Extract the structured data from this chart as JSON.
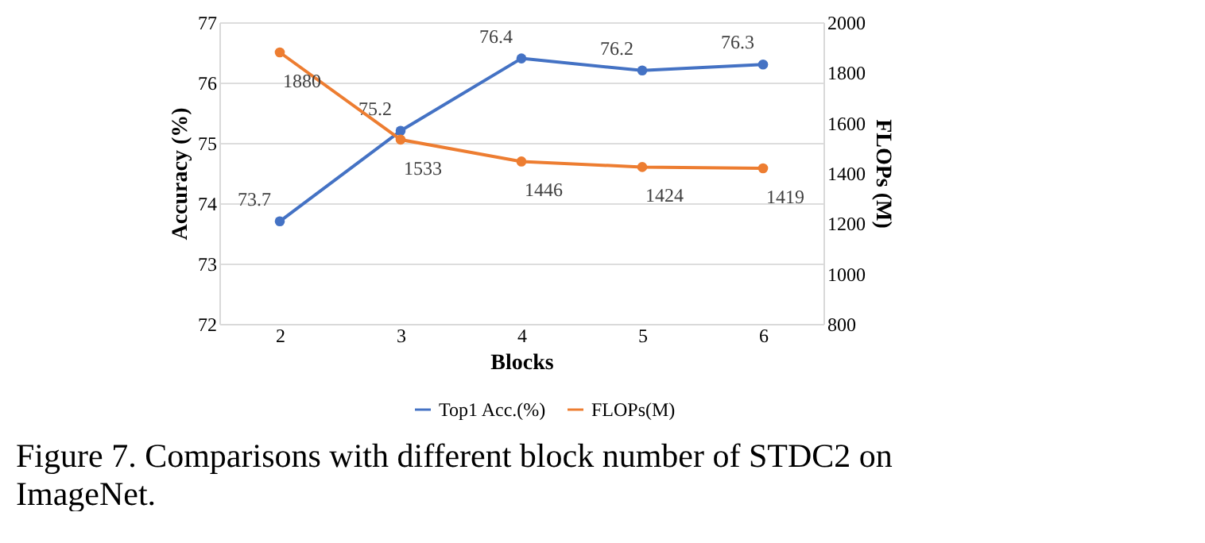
{
  "chart_data": {
    "type": "line",
    "categories": [
      "2",
      "3",
      "4",
      "5",
      "6"
    ],
    "xlabel": "Blocks",
    "ylabel": "Accuracy (%)",
    "y2label": "FLOPs (M)",
    "series": [
      {
        "name": "Top1 Acc.(%)",
        "color": "#4472c4",
        "values": [
          73.7,
          75.2,
          76.4,
          76.2,
          76.3
        ]
      },
      {
        "name": "FLOPs(M)",
        "color": "#ed7d31",
        "axis": "y2",
        "values": [
          1880,
          1533,
          1446,
          1424,
          1419
        ]
      }
    ],
    "ylim": [
      72,
      77
    ],
    "yticks": [
      72,
      73,
      74,
      75,
      76,
      77
    ],
    "y2lim": [
      800,
      2000
    ],
    "y2ticks": [
      800,
      1000,
      1200,
      1400,
      1600,
      1800,
      2000
    ],
    "grid": "y",
    "legend": "bottom",
    "marker": "circle",
    "line_style": "solid",
    "data_labels": true,
    "annotations": [
      "Figure 7. Comparisons with different block number of STDC2 on ImageNet."
    ]
  }
}
